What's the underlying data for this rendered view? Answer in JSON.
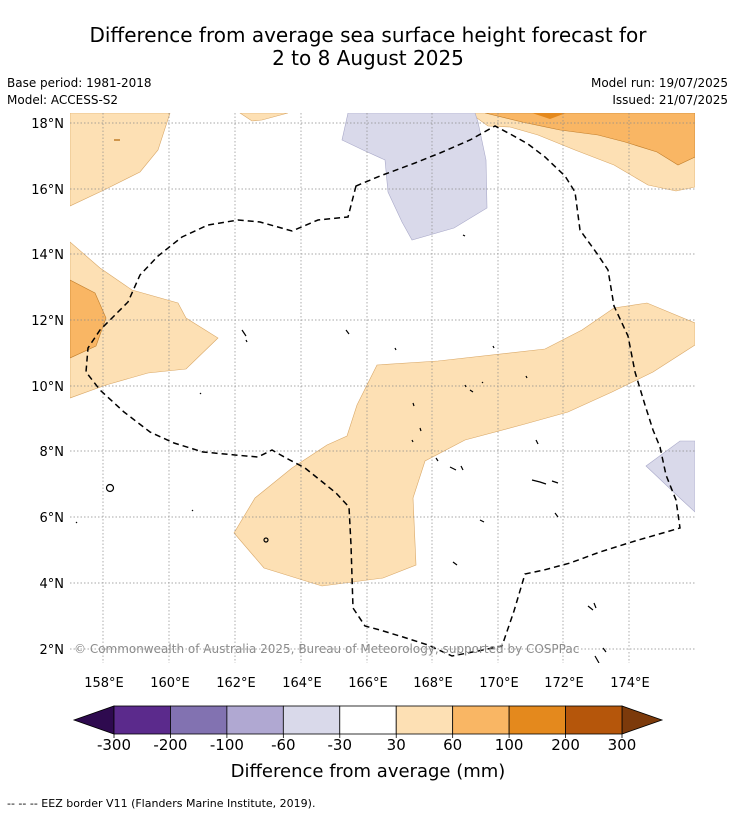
{
  "title": {
    "line1": "Difference from average sea surface height forecast for",
    "line2": "2 to 8 August 2025"
  },
  "meta": {
    "base_period": "Base period: 1981-2018",
    "model": "Model: ACCESS-S2",
    "model_run": "Model run: 19/07/2025",
    "issued": "Issued: 21/07/2025"
  },
  "map": {
    "lat_labels": [
      "18°N",
      "16°N",
      "14°N",
      "12°N",
      "10°N",
      "8°N",
      "6°N",
      "4°N",
      "2°N"
    ],
    "lon_labels": [
      "158°E",
      "160°E",
      "162°E",
      "164°E",
      "166°E",
      "168°E",
      "170°E",
      "172°E",
      "174°E"
    ],
    "copyright": "© Commonwealth of Australia 2025, Bureau of Meteorology, supported by COSPPac"
  },
  "colorbar": {
    "ticks": [
      "-300",
      "-200",
      "-100",
      "-60",
      "-30",
      "30",
      "60",
      "100",
      "200",
      "300"
    ],
    "colors": [
      "#5b2a8c",
      "#8272b1",
      "#b0a8d2",
      "#d9d9ea",
      "#ffffff",
      "#fde0b4",
      "#f9b664",
      "#e4891d",
      "#b5560b"
    ],
    "under_color": "#2e0a4f",
    "over_color": "#7c3a0b",
    "label": "Difference from average (mm)"
  },
  "legend": {
    "eez_text": "-- -- -- EEZ border V11 (Flanders Marine Institute, 2019)."
  }
}
